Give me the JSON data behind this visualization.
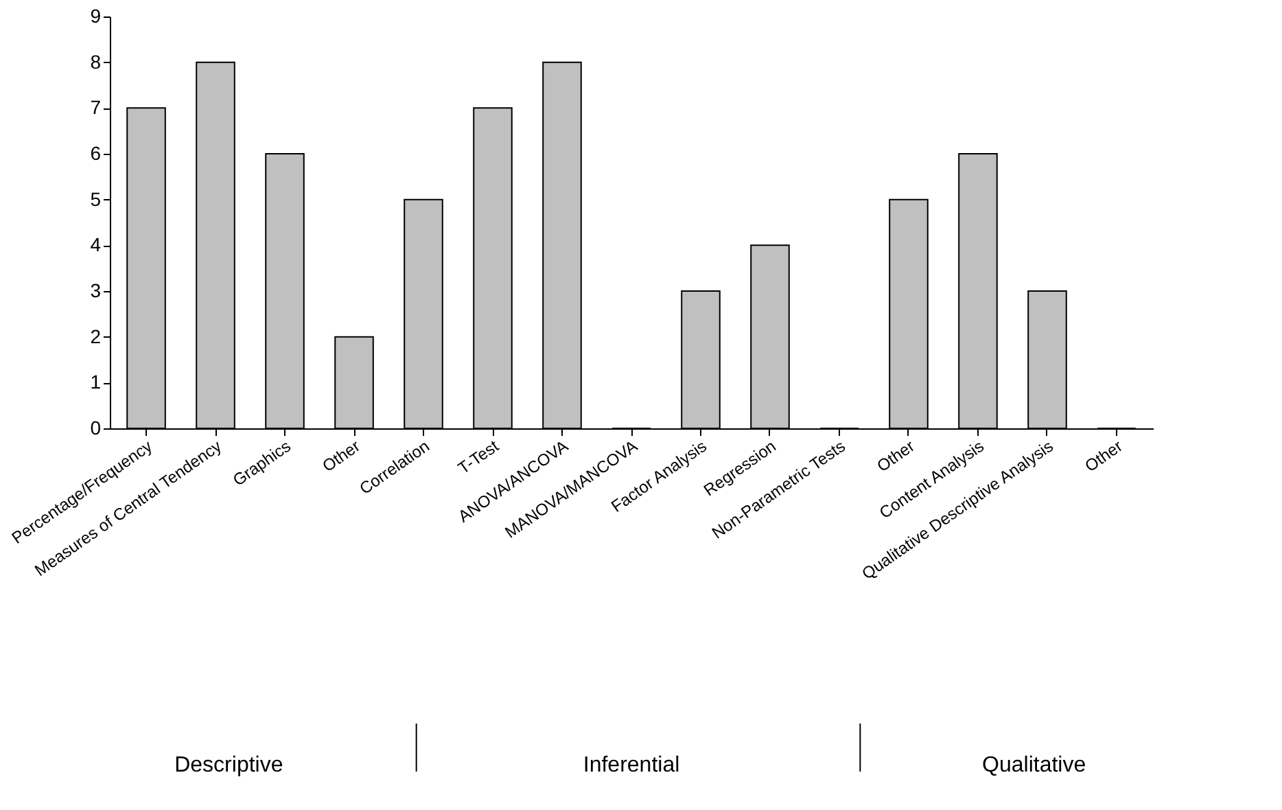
{
  "chart_data": {
    "type": "bar",
    "categories": [
      "Percentage/Frequency",
      "Measures of Central Tendency",
      "Graphics",
      "Other",
      "Correlation",
      "T-Test",
      "ANOVA/ANCOVA",
      "MANOVA/MANCOVA",
      "Factor Analysis",
      "Regression",
      "Non-Parametric Tests",
      "Other",
      "Content Analysis",
      "Qualitative Descriptive Analysis",
      "Other"
    ],
    "values": [
      7,
      8,
      6,
      2,
      5,
      7,
      8,
      0,
      3,
      4,
      0,
      5,
      6,
      3,
      0
    ],
    "color": "#c0c0c0",
    "ylim": [
      0,
      9
    ],
    "yticks": [
      0,
      1,
      2,
      3,
      4,
      5,
      6,
      7,
      8,
      9
    ],
    "grid": false,
    "annotations": [
      "Descriptive",
      "Inferential",
      "Qualitative"
    ]
  }
}
